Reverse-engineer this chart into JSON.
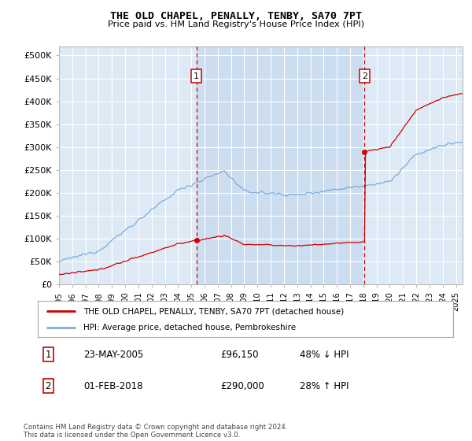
{
  "title": "THE OLD CHAPEL, PENALLY, TENBY, SA70 7PT",
  "subtitle": "Price paid vs. HM Land Registry's House Price Index (HPI)",
  "ylabel_ticks": [
    "£0",
    "£50K",
    "£100K",
    "£150K",
    "£200K",
    "£250K",
    "£300K",
    "£350K",
    "£400K",
    "£450K",
    "£500K"
  ],
  "ytick_vals": [
    0,
    50000,
    100000,
    150000,
    200000,
    250000,
    300000,
    350000,
    400000,
    450000,
    500000
  ],
  "ylim": [
    0,
    520000
  ],
  "xlim_start": 1995.0,
  "xlim_end": 2025.5,
  "transaction1": {
    "date": 2005.38,
    "price": 96150,
    "label": "1"
  },
  "transaction2": {
    "date": 2018.08,
    "price": 290000,
    "label": "2"
  },
  "legend_line1": "THE OLD CHAPEL, PENALLY, TENBY, SA70 7PT (detached house)",
  "legend_line2": "HPI: Average price, detached house, Pembrokeshire",
  "table_row1": [
    "1",
    "23-MAY-2005",
    "£96,150",
    "48% ↓ HPI"
  ],
  "table_row2": [
    "2",
    "01-FEB-2018",
    "£290,000",
    "28% ↑ HPI"
  ],
  "footer": "Contains HM Land Registry data © Crown copyright and database right 2024.\nThis data is licensed under the Open Government Licence v3.0.",
  "hpi_color": "#7aabdc",
  "price_color": "#cc0000",
  "bg_color": "#ddeaf5",
  "bg_shade_color": "#ccddf0",
  "grid_color": "#bbbbbb",
  "vline_color": "#cc0000",
  "title_color": "#000000"
}
